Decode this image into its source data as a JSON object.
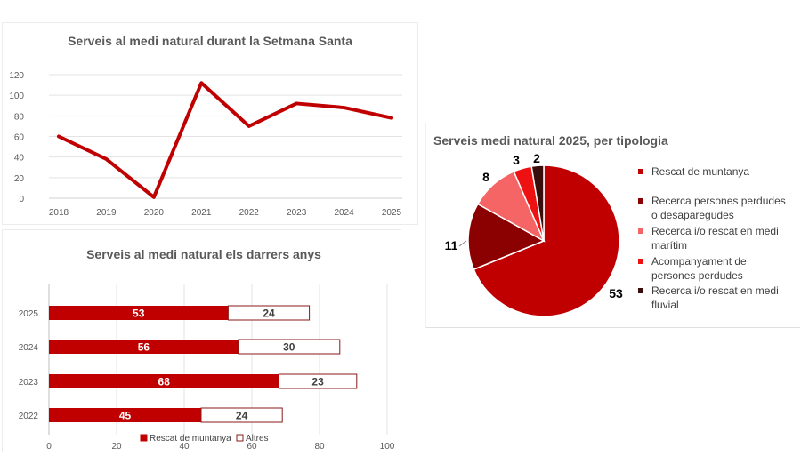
{
  "colors": {
    "dark_red": "#c00000",
    "maroon": "#8b0000",
    "light_red": "#f56565",
    "red": "#ee1111",
    "dark_brown": "#3a0d0d",
    "text": "#595959",
    "grid": "#e3e3e3"
  },
  "chart_data": [
    {
      "type": "line",
      "title": "Serveis al medi natural durant la Setmana Santa",
      "x": [
        "2018",
        "2019",
        "2020",
        "2021",
        "2022",
        "2023",
        "2024",
        "2025"
      ],
      "values": [
        60,
        38,
        1,
        112,
        70,
        92,
        88,
        78
      ],
      "ylim": [
        0,
        120
      ],
      "yticks": [
        0,
        20,
        40,
        60,
        80,
        100,
        120
      ],
      "grid": true,
      "color": "#c00000"
    },
    {
      "type": "bar",
      "orientation": "horizontal",
      "stacked": true,
      "title": "Serveis al medi natural els darrers anys",
      "categories": [
        "2025",
        "2024",
        "2023",
        "2022"
      ],
      "series": [
        {
          "name": "Rescat de muntanya",
          "values": [
            53,
            56,
            68,
            45
          ],
          "color": "#c00000"
        },
        {
          "name": "Altres",
          "values": [
            24,
            30,
            23,
            24
          ],
          "color": "#ffffff"
        }
      ],
      "xlim": [
        0,
        100
      ],
      "xticks": [
        0,
        20,
        40,
        60,
        80,
        100
      ],
      "grid": true,
      "legend": "bottom"
    },
    {
      "type": "pie",
      "title": "Serveis medi natural 2025, per tipologia",
      "slices": [
        {
          "label": "Rescat de muntanya",
          "value": 53,
          "color": "#c00000"
        },
        {
          "label": "Recerca persones perdudes o desaparegudes",
          "value": 11,
          "color": "#8b0000"
        },
        {
          "label": "Recerca i/o rescat en medi marítim",
          "value": 8,
          "color": "#f56565"
        },
        {
          "label": "Acompanyament de persones perdudes",
          "value": 3,
          "color": "#ee1111"
        },
        {
          "label": "Recerca i/o rescat en medi fluvial",
          "value": 2,
          "color": "#3a0d0d"
        }
      ],
      "legend": "right"
    }
  ]
}
